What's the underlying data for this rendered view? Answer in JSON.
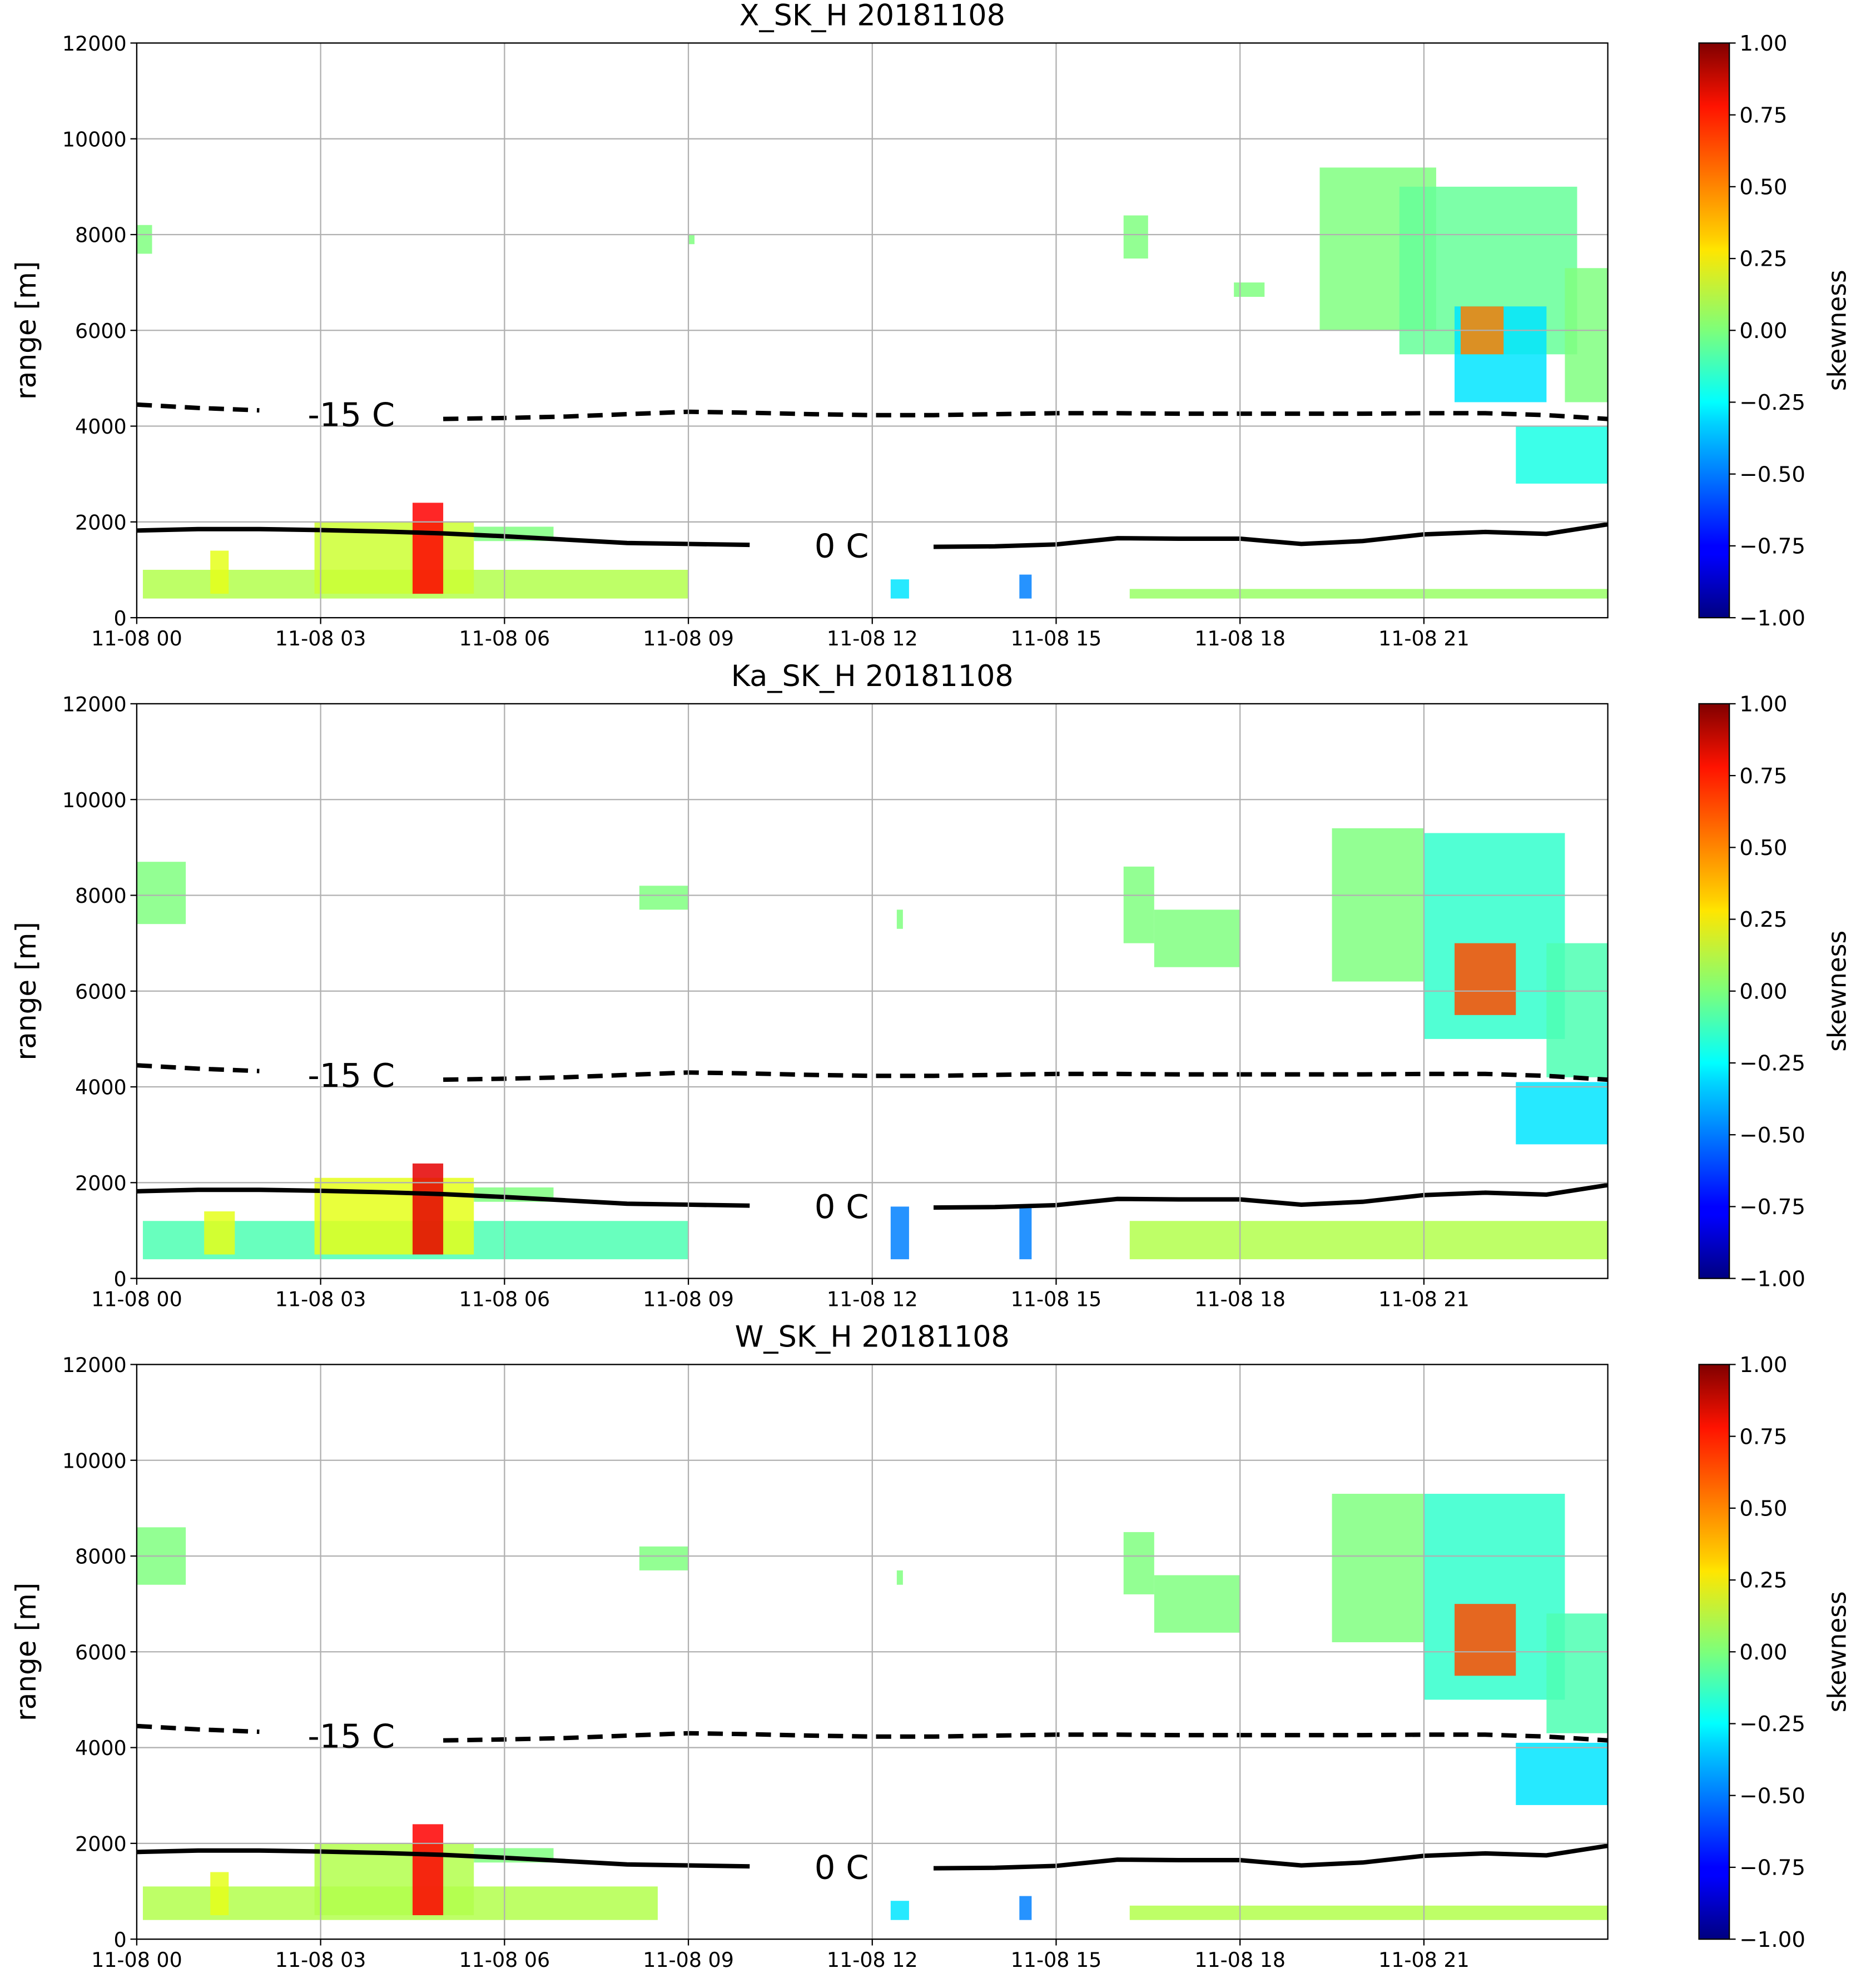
{
  "chart_data": [
    {
      "type": "heatmap",
      "title": "X_SK_H 20181108",
      "ylabel": "range [m]",
      "colorbar_label": "skewness",
      "xlim": [
        0,
        24
      ],
      "xticks": [
        {
          "value": 0,
          "label": "11-08 00"
        },
        {
          "value": 3,
          "label": "11-08 03"
        },
        {
          "value": 6,
          "label": "11-08 06"
        },
        {
          "value": 9,
          "label": "11-08 09"
        },
        {
          "value": 12,
          "label": "11-08 12"
        },
        {
          "value": 15,
          "label": "11-08 15"
        },
        {
          "value": 18,
          "label": "11-08 18"
        },
        {
          "value": 21,
          "label": "11-08 21"
        }
      ],
      "ylim": [
        0,
        12000
      ],
      "yticks": [
        0,
        2000,
        4000,
        6000,
        8000,
        10000,
        12000
      ],
      "grid": true,
      "clim": [
        -1,
        1
      ],
      "cticks": [
        {
          "value": -1,
          "label": "−1.00"
        },
        {
          "value": -0.75,
          "label": "−0.75"
        },
        {
          "value": -0.5,
          "label": "−0.50"
        },
        {
          "value": -0.25,
          "label": "−0.25"
        },
        {
          "value": 0,
          "label": "0.00"
        },
        {
          "value": 0.25,
          "label": "0.25"
        },
        {
          "value": 0.5,
          "label": "0.50"
        },
        {
          "value": 0.75,
          "label": "0.75"
        },
        {
          "value": 1,
          "label": "1.00"
        }
      ],
      "cells": [
        [
          0,
          0.25,
          7600,
          8200,
          0
        ],
        [
          0.1,
          9,
          400,
          1000,
          0.1
        ],
        [
          1.2,
          1.5,
          500,
          1400,
          0.2
        ],
        [
          2.9,
          5.5,
          500,
          2000,
          0.15
        ],
        [
          4.5,
          5,
          500,
          2400,
          0.75
        ],
        [
          5.5,
          6.8,
          1600,
          1900,
          0
        ],
        [
          9,
          9.1,
          7800,
          8000,
          0
        ],
        [
          12.3,
          12.6,
          400,
          800,
          -0.3
        ],
        [
          14.4,
          14.6,
          400,
          900,
          -0.5
        ],
        [
          16.2,
          24,
          400,
          600,
          0.05
        ],
        [
          16.1,
          16.5,
          7500,
          8400,
          0
        ],
        [
          17.9,
          18.4,
          6700,
          7000,
          0
        ],
        [
          19.3,
          21.2,
          6000,
          9400,
          0
        ],
        [
          20.6,
          23.5,
          5500,
          9000,
          -0.05
        ],
        [
          21.5,
          23,
          4500,
          6500,
          -0.3
        ],
        [
          21.6,
          22.3,
          5500,
          6500,
          0.5
        ],
        [
          22.5,
          24,
          2800,
          4000,
          -0.2
        ],
        [
          23.3,
          24,
          4500,
          7300,
          0
        ]
      ],
      "series": [
        {
          "name": "-15 C",
          "color": "#000000",
          "dash": true,
          "x": [
            0,
            1,
            2,
            3,
            4,
            5,
            6,
            7,
            8,
            9,
            10,
            11,
            12,
            13,
            14,
            15,
            16,
            17,
            18,
            19,
            20,
            21,
            22,
            23,
            24
          ],
          "values": [
            4450,
            4380,
            4330,
            null,
            null,
            4150,
            4170,
            4200,
            4250,
            4300,
            4280,
            4250,
            4230,
            4230,
            4250,
            4270,
            4270,
            4260,
            4260,
            4260,
            4260,
            4270,
            4270,
            4230,
            4150
          ]
        },
        {
          "name": "0 C",
          "color": "#000000",
          "dash": false,
          "x": [
            0,
            1,
            2,
            3,
            4,
            5,
            6,
            7,
            8,
            9,
            10,
            11,
            12,
            13,
            14,
            15,
            16,
            17,
            18,
            19,
            20,
            21,
            22,
            23,
            24
          ],
          "values": [
            1820,
            1850,
            1850,
            1830,
            1800,
            1760,
            1700,
            1630,
            1560,
            1540,
            1520,
            null,
            null,
            1480,
            1490,
            1530,
            1660,
            1650,
            1650,
            1540,
            1600,
            1740,
            1790,
            1750,
            1950
          ]
        }
      ]
    },
    {
      "type": "heatmap",
      "title": "Ka_SK_H 20181108",
      "ylabel": "range [m]",
      "colorbar_label": "skewness",
      "xlim": [
        0,
        24
      ],
      "xticks": [
        {
          "value": 0,
          "label": "11-08 00"
        },
        {
          "value": 3,
          "label": "11-08 03"
        },
        {
          "value": 6,
          "label": "11-08 06"
        },
        {
          "value": 9,
          "label": "11-08 09"
        },
        {
          "value": 12,
          "label": "11-08 12"
        },
        {
          "value": 15,
          "label": "11-08 15"
        },
        {
          "value": 18,
          "label": "11-08 18"
        },
        {
          "value": 21,
          "label": "11-08 21"
        }
      ],
      "ylim": [
        0,
        12000
      ],
      "yticks": [
        0,
        2000,
        4000,
        6000,
        8000,
        10000,
        12000
      ],
      "grid": true,
      "clim": [
        -1,
        1
      ],
      "cticks": [
        {
          "value": -1,
          "label": "−1.00"
        },
        {
          "value": -0.75,
          "label": "−0.75"
        },
        {
          "value": -0.5,
          "label": "−0.50"
        },
        {
          "value": -0.25,
          "label": "−0.25"
        },
        {
          "value": 0,
          "label": "0.00"
        },
        {
          "value": 0.25,
          "label": "0.25"
        },
        {
          "value": 0.5,
          "label": "0.50"
        },
        {
          "value": 0.75,
          "label": "0.75"
        },
        {
          "value": 1,
          "label": "1.00"
        }
      ],
      "cells": [
        [
          0,
          0.8,
          7400,
          8700,
          0
        ],
        [
          0.1,
          9,
          400,
          1200,
          -0.1
        ],
        [
          1.1,
          1.6,
          500,
          1400,
          0.2
        ],
        [
          2.9,
          5.5,
          500,
          2100,
          0.2
        ],
        [
          4.5,
          5,
          500,
          2400,
          0.8
        ],
        [
          5.5,
          6.8,
          1600,
          1900,
          0
        ],
        [
          8.2,
          9,
          7700,
          8200,
          0
        ],
        [
          12.3,
          12.6,
          400,
          1500,
          -0.5
        ],
        [
          12.4,
          12.5,
          7300,
          7700,
          0
        ],
        [
          14.4,
          14.6,
          400,
          1500,
          -0.5
        ],
        [
          16.2,
          24,
          400,
          1200,
          0.1
        ],
        [
          16.1,
          16.6,
          7000,
          8600,
          0
        ],
        [
          16.6,
          18,
          6500,
          7700,
          0
        ],
        [
          19.5,
          21,
          6200,
          9400,
          0
        ],
        [
          21,
          23.3,
          5000,
          9300,
          -0.15
        ],
        [
          21.5,
          22.5,
          5500,
          7000,
          0.6
        ],
        [
          22.5,
          24,
          2800,
          4100,
          -0.3
        ],
        [
          23,
          24,
          4200,
          7000,
          -0.1
        ]
      ],
      "series": [
        {
          "name": "-15 C",
          "color": "#000000",
          "dash": true,
          "x": [
            0,
            1,
            2,
            3,
            4,
            5,
            6,
            7,
            8,
            9,
            10,
            11,
            12,
            13,
            14,
            15,
            16,
            17,
            18,
            19,
            20,
            21,
            22,
            23,
            24
          ],
          "values": [
            4450,
            4380,
            4330,
            null,
            null,
            4150,
            4170,
            4200,
            4250,
            4300,
            4280,
            4250,
            4230,
            4230,
            4250,
            4270,
            4270,
            4260,
            4260,
            4260,
            4260,
            4270,
            4270,
            4230,
            4150
          ]
        },
        {
          "name": "0 C",
          "color": "#000000",
          "dash": false,
          "x": [
            0,
            1,
            2,
            3,
            4,
            5,
            6,
            7,
            8,
            9,
            10,
            11,
            12,
            13,
            14,
            15,
            16,
            17,
            18,
            19,
            20,
            21,
            22,
            23,
            24
          ],
          "values": [
            1820,
            1850,
            1850,
            1830,
            1800,
            1760,
            1700,
            1630,
            1560,
            1540,
            1520,
            null,
            null,
            1480,
            1490,
            1530,
            1660,
            1650,
            1650,
            1540,
            1600,
            1740,
            1790,
            1750,
            1950
          ]
        }
      ]
    },
    {
      "type": "heatmap",
      "title": "W_SK_H 20181108",
      "ylabel": "range [m]",
      "colorbar_label": "skewness",
      "xlim": [
        0,
        24
      ],
      "xticks": [
        {
          "value": 0,
          "label": "11-08 00"
        },
        {
          "value": 3,
          "label": "11-08 03"
        },
        {
          "value": 6,
          "label": "11-08 06"
        },
        {
          "value": 9,
          "label": "11-08 09"
        },
        {
          "value": 12,
          "label": "11-08 12"
        },
        {
          "value": 15,
          "label": "11-08 15"
        },
        {
          "value": 18,
          "label": "11-08 18"
        },
        {
          "value": 21,
          "label": "11-08 21"
        }
      ],
      "ylim": [
        0,
        12000
      ],
      "yticks": [
        0,
        2000,
        4000,
        6000,
        8000,
        10000,
        12000
      ],
      "grid": true,
      "clim": [
        -1,
        1
      ],
      "cticks": [
        {
          "value": -1,
          "label": "−1.00"
        },
        {
          "value": -0.75,
          "label": "−0.75"
        },
        {
          "value": -0.5,
          "label": "−0.50"
        },
        {
          "value": -0.25,
          "label": "−0.25"
        },
        {
          "value": 0,
          "label": "0.00"
        },
        {
          "value": 0.25,
          "label": "0.25"
        },
        {
          "value": 0.5,
          "label": "0.50"
        },
        {
          "value": 0.75,
          "label": "0.75"
        },
        {
          "value": 1,
          "label": "1.00"
        }
      ],
      "cells": [
        [
          0,
          0.8,
          7400,
          8600,
          0
        ],
        [
          0.1,
          8.5,
          400,
          1100,
          0.1
        ],
        [
          1.2,
          1.5,
          500,
          1400,
          0.2
        ],
        [
          2.9,
          5.5,
          500,
          2000,
          0.1
        ],
        [
          4.5,
          5,
          500,
          2400,
          0.75
        ],
        [
          5.5,
          6.8,
          1600,
          1900,
          0
        ],
        [
          8.2,
          9,
          7700,
          8200,
          0
        ],
        [
          12.3,
          12.6,
          400,
          800,
          -0.3
        ],
        [
          12.4,
          12.5,
          7400,
          7700,
          0
        ],
        [
          14.4,
          14.6,
          400,
          900,
          -0.5
        ],
        [
          16.2,
          24,
          400,
          700,
          0.1
        ],
        [
          16.1,
          16.6,
          7200,
          8500,
          0
        ],
        [
          16.6,
          18,
          6400,
          7600,
          0
        ],
        [
          19.5,
          21,
          6200,
          9300,
          0
        ],
        [
          21,
          23.3,
          5000,
          9300,
          -0.15
        ],
        [
          21.5,
          22.5,
          5500,
          7000,
          0.6
        ],
        [
          22.5,
          24,
          2800,
          4100,
          -0.3
        ],
        [
          23,
          24,
          4300,
          6800,
          -0.1
        ]
      ],
      "series": [
        {
          "name": "-15 C",
          "color": "#000000",
          "dash": true,
          "x": [
            0,
            1,
            2,
            3,
            4,
            5,
            6,
            7,
            8,
            9,
            10,
            11,
            12,
            13,
            14,
            15,
            16,
            17,
            18,
            19,
            20,
            21,
            22,
            23,
            24
          ],
          "values": [
            4450,
            4380,
            4330,
            null,
            null,
            4150,
            4170,
            4200,
            4250,
            4300,
            4280,
            4250,
            4230,
            4230,
            4250,
            4270,
            4270,
            4260,
            4260,
            4260,
            4260,
            4270,
            4270,
            4230,
            4150
          ]
        },
        {
          "name": "0 C",
          "color": "#000000",
          "dash": false,
          "x": [
            0,
            1,
            2,
            3,
            4,
            5,
            6,
            7,
            8,
            9,
            10,
            11,
            12,
            13,
            14,
            15,
            16,
            17,
            18,
            19,
            20,
            21,
            22,
            23,
            24
          ],
          "values": [
            1820,
            1850,
            1850,
            1830,
            1800,
            1760,
            1700,
            1630,
            1560,
            1540,
            1520,
            null,
            null,
            1480,
            1490,
            1530,
            1660,
            1650,
            1650,
            1540,
            1600,
            1740,
            1790,
            1750,
            1950
          ]
        }
      ]
    }
  ]
}
